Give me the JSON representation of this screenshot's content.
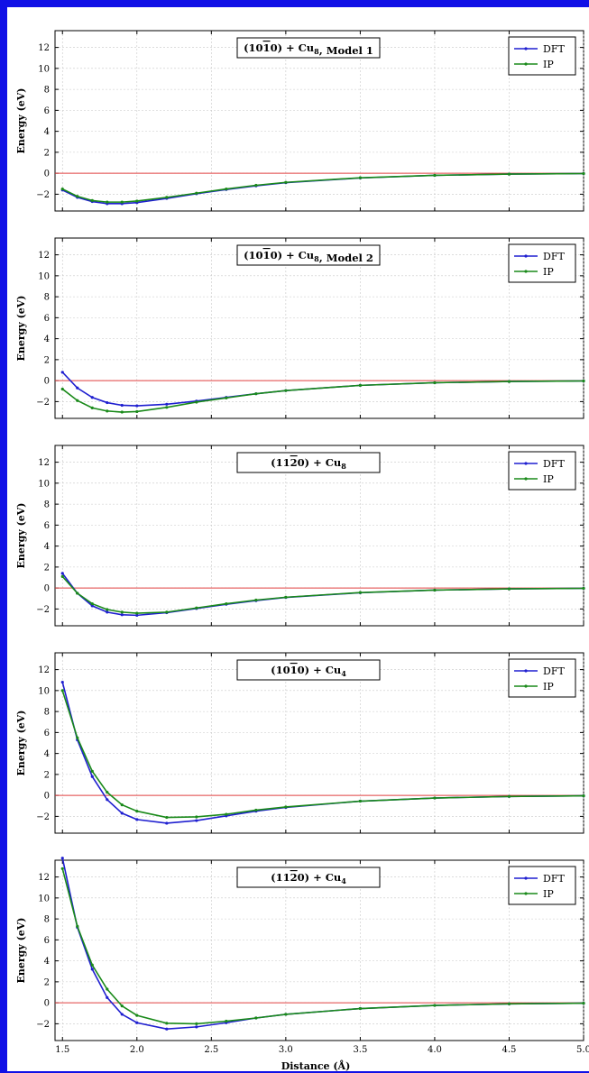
{
  "figure": {
    "border_color": "#1010e6",
    "xlabel": "Distance (Å)",
    "ylabel": "Energy (eV)",
    "x_ticks": [
      "1.5",
      "2.0",
      "2.5",
      "3.0",
      "3.5",
      "4.0",
      "4.5",
      "5.0"
    ],
    "y_ticks": [
      "−2",
      "0",
      "2",
      "4",
      "6",
      "8",
      "10",
      "12"
    ]
  },
  "chart_data": [
    {
      "type": "line",
      "title": "(10̅0) + Cu8, Model 1",
      "title_parts": [
        "(10",
        "1",
        "0) + Cu",
        "8",
        ", Model 1"
      ],
      "xlim": [
        1.45,
        5.0
      ],
      "ylim": [
        -3.6,
        13.6
      ],
      "x": [
        1.5,
        1.6,
        1.7,
        1.8,
        1.9,
        2.0,
        2.2,
        2.4,
        2.6,
        2.8,
        3.0,
        3.5,
        4.0,
        4.5,
        5.0
      ],
      "series": [
        {
          "name": "DFT",
          "color": "#1f1fd0",
          "values": [
            -1.6,
            -2.3,
            -2.7,
            -2.9,
            -2.9,
            -2.8,
            -2.4,
            -1.95,
            -1.55,
            -1.2,
            -0.9,
            -0.45,
            -0.2,
            -0.08,
            -0.03
          ]
        },
        {
          "name": "IP",
          "color": "#1a8a1a",
          "values": [
            -1.5,
            -2.2,
            -2.6,
            -2.75,
            -2.75,
            -2.65,
            -2.3,
            -1.9,
            -1.5,
            -1.15,
            -0.87,
            -0.43,
            -0.2,
            -0.08,
            -0.03
          ]
        }
      ],
      "hline": 0,
      "hline_color": "#e04040",
      "legend": "top-right",
      "grid": true
    },
    {
      "type": "line",
      "title": "(10̅0) + Cu8, Model 2",
      "title_parts": [
        "(10",
        "1",
        "0) + Cu",
        "8",
        ", Model 2"
      ],
      "xlim": [
        1.45,
        5.0
      ],
      "ylim": [
        -3.6,
        13.6
      ],
      "x": [
        1.5,
        1.6,
        1.7,
        1.8,
        1.9,
        2.0,
        2.2,
        2.4,
        2.6,
        2.8,
        3.0,
        3.5,
        4.0,
        4.5,
        5.0
      ],
      "series": [
        {
          "name": "DFT",
          "color": "#1f1fd0",
          "values": [
            0.8,
            -0.7,
            -1.6,
            -2.1,
            -2.35,
            -2.4,
            -2.25,
            -1.95,
            -1.6,
            -1.25,
            -0.95,
            -0.45,
            -0.2,
            -0.08,
            -0.03
          ]
        },
        {
          "name": "IP",
          "color": "#1a8a1a",
          "values": [
            -0.8,
            -1.9,
            -2.6,
            -2.9,
            -3.0,
            -2.95,
            -2.55,
            -2.05,
            -1.65,
            -1.25,
            -0.95,
            -0.45,
            -0.2,
            -0.08,
            -0.03
          ]
        }
      ],
      "hline": 0,
      "hline_color": "#e04040",
      "legend": "top-right",
      "grid": true
    },
    {
      "type": "line",
      "title": "(11̅2̅0) + Cu8",
      "title_parts": [
        "(11",
        "2",
        "0) + Cu",
        "8",
        ""
      ],
      "xlim": [
        1.45,
        5.0
      ],
      "ylim": [
        -3.6,
        13.6
      ],
      "x": [
        1.5,
        1.6,
        1.7,
        1.8,
        1.9,
        2.0,
        2.2,
        2.4,
        2.6,
        2.8,
        3.0,
        3.5,
        4.0,
        4.5,
        5.0
      ],
      "series": [
        {
          "name": "DFT",
          "color": "#1f1fd0",
          "values": [
            1.4,
            -0.5,
            -1.7,
            -2.3,
            -2.55,
            -2.6,
            -2.35,
            -1.95,
            -1.55,
            -1.2,
            -0.9,
            -0.45,
            -0.2,
            -0.08,
            -0.03
          ]
        },
        {
          "name": "IP",
          "color": "#1a8a1a",
          "values": [
            1.1,
            -0.5,
            -1.5,
            -2.05,
            -2.3,
            -2.4,
            -2.3,
            -1.9,
            -1.5,
            -1.15,
            -0.88,
            -0.43,
            -0.2,
            -0.08,
            -0.03
          ]
        }
      ],
      "hline": 0,
      "hline_color": "#e04040",
      "legend": "top-right",
      "grid": true
    },
    {
      "type": "line",
      "title": "(10̅0) + Cu4",
      "title_parts": [
        "(10",
        "1",
        "0) + Cu",
        "4",
        ""
      ],
      "xlim": [
        1.45,
        5.0
      ],
      "ylim": [
        -3.6,
        13.6
      ],
      "x": [
        1.5,
        1.6,
        1.7,
        1.8,
        1.9,
        2.0,
        2.2,
        2.4,
        2.6,
        2.8,
        3.0,
        3.5,
        4.0,
        4.5,
        5.0
      ],
      "series": [
        {
          "name": "DFT",
          "color": "#1f1fd0",
          "values": [
            10.8,
            5.3,
            1.8,
            -0.4,
            -1.7,
            -2.3,
            -2.65,
            -2.4,
            -1.95,
            -1.5,
            -1.15,
            -0.55,
            -0.25,
            -0.1,
            -0.04
          ]
        },
        {
          "name": "IP",
          "color": "#1a8a1a",
          "values": [
            10.0,
            5.5,
            2.3,
            0.3,
            -0.9,
            -1.5,
            -2.1,
            -2.05,
            -1.8,
            -1.4,
            -1.1,
            -0.55,
            -0.25,
            -0.1,
            -0.04
          ]
        }
      ],
      "hline": 0,
      "hline_color": "#e04040",
      "legend": "top-right",
      "grid": true
    },
    {
      "type": "line",
      "title": "(11̅2̅0) + Cu4",
      "title_parts": [
        "(11",
        "2",
        "0) + Cu",
        "4",
        ""
      ],
      "xlim": [
        1.45,
        5.0
      ],
      "ylim": [
        -3.6,
        13.6
      ],
      "x": [
        1.5,
        1.6,
        1.7,
        1.8,
        1.9,
        2.0,
        2.2,
        2.4,
        2.6,
        2.8,
        3.0,
        3.5,
        4.0,
        4.5,
        5.0
      ],
      "series": [
        {
          "name": "DFT",
          "color": "#1f1fd0",
          "values": [
            13.8,
            7.2,
            3.2,
            0.5,
            -1.1,
            -1.9,
            -2.5,
            -2.3,
            -1.9,
            -1.45,
            -1.1,
            -0.55,
            -0.25,
            -0.1,
            -0.04
          ]
        },
        {
          "name": "IP",
          "color": "#1a8a1a",
          "values": [
            12.8,
            7.3,
            3.6,
            1.3,
            -0.3,
            -1.2,
            -1.95,
            -2.0,
            -1.75,
            -1.45,
            -1.1,
            -0.55,
            -0.25,
            -0.1,
            -0.04
          ]
        }
      ],
      "hline": 0,
      "hline_color": "#e04040",
      "legend": "top-right",
      "grid": true
    }
  ]
}
